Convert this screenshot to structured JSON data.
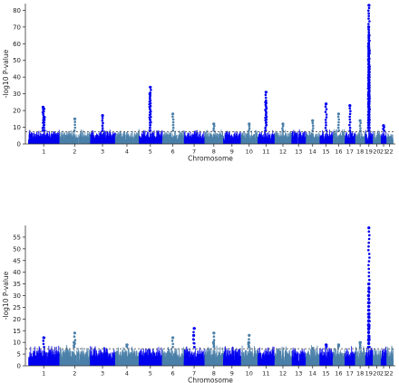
{
  "chart_data": [
    {
      "type": "scatter",
      "subtype": "manhattan",
      "xlabel": "Chromosome",
      "ylabel": "-log10 P-value",
      "ylim": [
        0,
        84
      ],
      "yticks": [
        0,
        10,
        20,
        30,
        40,
        50,
        60,
        70,
        80
      ],
      "threshold": 7.3,
      "grid": false,
      "chromosomes": [
        "1",
        "2",
        "3",
        "4",
        "5",
        "6",
        "7",
        "8",
        "9",
        "10",
        "11",
        "12",
        "13",
        "14",
        "15",
        "16",
        "17",
        "18",
        "19",
        "20",
        "21",
        "22"
      ],
      "colors": [
        "#0000ee",
        "#4a7fa8"
      ],
      "peaks": [
        {
          "chromosome": "1",
          "value": 21
        },
        {
          "chromosome": "1",
          "value": 22
        },
        {
          "chromosome": "1",
          "value": 16
        },
        {
          "chromosome": "2",
          "value": 15
        },
        {
          "chromosome": "3",
          "value": 17
        },
        {
          "chromosome": "5",
          "value": 34
        },
        {
          "chromosome": "5",
          "value": 30
        },
        {
          "chromosome": "6",
          "value": 18
        },
        {
          "chromosome": "8",
          "value": 12
        },
        {
          "chromosome": "10",
          "value": 12
        },
        {
          "chromosome": "11",
          "value": 31
        },
        {
          "chromosome": "11",
          "value": 25
        },
        {
          "chromosome": "12",
          "value": 12
        },
        {
          "chromosome": "14",
          "value": 14
        },
        {
          "chromosome": "15",
          "value": 24
        },
        {
          "chromosome": "16",
          "value": 18
        },
        {
          "chromosome": "17",
          "value": 23
        },
        {
          "chromosome": "18",
          "value": 14
        },
        {
          "chromosome": "19",
          "value": 83
        },
        {
          "chromosome": "19",
          "value": 70
        },
        {
          "chromosome": "19",
          "value": 65
        },
        {
          "chromosome": "19",
          "value": 60
        },
        {
          "chromosome": "19",
          "value": 56
        },
        {
          "chromosome": "19",
          "value": 40
        },
        {
          "chromosome": "19",
          "value": 36
        },
        {
          "chromosome": "19",
          "value": 31
        },
        {
          "chromosome": "21",
          "value": 11
        }
      ]
    },
    {
      "type": "scatter",
      "subtype": "manhattan",
      "xlabel": "Chromosome",
      "ylabel": "-log10 P-value",
      "ylim": [
        0,
        60
      ],
      "yticks": [
        0,
        5,
        10,
        15,
        20,
        25,
        30,
        35,
        40,
        45,
        50,
        55
      ],
      "threshold": 7.3,
      "grid": false,
      "chromosomes": [
        "1",
        "2",
        "3",
        "4",
        "5",
        "6",
        "7",
        "8",
        "9",
        "10",
        "11",
        "12",
        "13",
        "14",
        "15",
        "16",
        "17",
        "18",
        "19",
        "20",
        "21",
        "22"
      ],
      "colors": [
        "#0000ee",
        "#4a7fa8"
      ],
      "peaks": [
        {
          "chromosome": "1",
          "value": 12
        },
        {
          "chromosome": "2",
          "value": 14
        },
        {
          "chromosome": "2",
          "value": 10
        },
        {
          "chromosome": "4",
          "value": 9
        },
        {
          "chromosome": "6",
          "value": 12
        },
        {
          "chromosome": "7",
          "value": 16
        },
        {
          "chromosome": "7",
          "value": 13
        },
        {
          "chromosome": "8",
          "value": 14
        },
        {
          "chromosome": "8",
          "value": 10
        },
        {
          "chromosome": "10",
          "value": 13
        },
        {
          "chromosome": "10",
          "value": 10
        },
        {
          "chromosome": "15",
          "value": 9
        },
        {
          "chromosome": "16",
          "value": 9
        },
        {
          "chromosome": "18",
          "value": 10
        },
        {
          "chromosome": "19",
          "value": 59
        },
        {
          "chromosome": "19",
          "value": 35
        },
        {
          "chromosome": "19",
          "value": 33
        },
        {
          "chromosome": "19",
          "value": 30
        },
        {
          "chromosome": "19",
          "value": 27
        },
        {
          "chromosome": "19",
          "value": 21
        },
        {
          "chromosome": "19",
          "value": 17
        },
        {
          "chromosome": "19",
          "value": 12
        }
      ]
    }
  ]
}
